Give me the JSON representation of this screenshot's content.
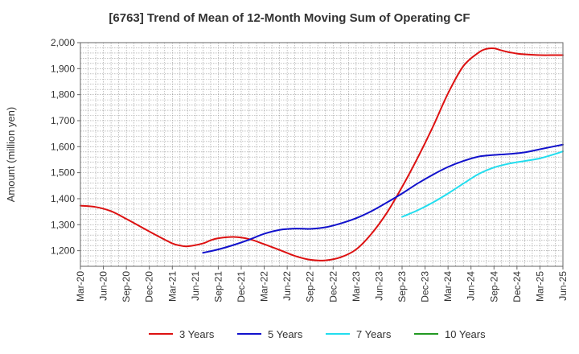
{
  "chart_data": {
    "type": "line",
    "title": "[6763]  Trend of Mean of 12-Month Moving Sum of Operating CF",
    "xlabel": "",
    "ylabel": "Amount (million yen)",
    "ylim": [
      1140,
      2000
    ],
    "yticks": [
      1200,
      1300,
      1400,
      1500,
      1600,
      1700,
      1800,
      1900,
      2000
    ],
    "ytick_labels": [
      "1,200",
      "1,300",
      "1,400",
      "1,500",
      "1,600",
      "1,700",
      "1,800",
      "1,900",
      "2,000"
    ],
    "x_range": [
      0,
      63
    ],
    "xtick_labels": [
      "Mar-20",
      "Jun-20",
      "Sep-20",
      "Dec-20",
      "Mar-21",
      "Jun-21",
      "Sep-21",
      "Dec-21",
      "Mar-22",
      "Jun-22",
      "Sep-22",
      "Dec-22",
      "Mar-23",
      "Jun-23",
      "Sep-23",
      "Dec-23",
      "Mar-24",
      "Jun-24",
      "Sep-24",
      "Dec-24",
      "Mar-25",
      "Jun-25"
    ],
    "grid": true,
    "legend_position": "bottom",
    "series": [
      {
        "name": "3 Years",
        "color": "#dd1111",
        "x": [
          0,
          2,
          4,
          6,
          8,
          10,
          12,
          13,
          14,
          16,
          17,
          18,
          20,
          22,
          24,
          26,
          28,
          30,
          32,
          34,
          36,
          38,
          40,
          42,
          44,
          46,
          48,
          50,
          52,
          53,
          54,
          55,
          56,
          57,
          58,
          60,
          62,
          63
        ],
        "values": [
          1373,
          1368,
          1352,
          1322,
          1290,
          1258,
          1228,
          1220,
          1217,
          1228,
          1240,
          1248,
          1253,
          1245,
          1225,
          1203,
          1180,
          1165,
          1163,
          1175,
          1205,
          1265,
          1345,
          1445,
          1555,
          1675,
          1805,
          1910,
          1962,
          1976,
          1978,
          1970,
          1963,
          1958,
          1955,
          1952,
          1952,
          1952
        ]
      },
      {
        "name": "5 Years",
        "color": "#1111cc",
        "x": [
          16,
          18,
          20,
          22,
          24,
          26,
          28,
          30,
          32,
          34,
          36,
          38,
          40,
          42,
          44,
          46,
          48,
          50,
          52,
          54,
          56,
          58,
          60,
          63
        ],
        "values": [
          1192,
          1205,
          1222,
          1242,
          1265,
          1280,
          1285,
          1284,
          1290,
          1305,
          1325,
          1352,
          1385,
          1420,
          1458,
          1492,
          1522,
          1545,
          1562,
          1568,
          1572,
          1578,
          1590,
          1608
        ]
      },
      {
        "name": "7 Years",
        "color": "#22ddee",
        "x": [
          42,
          44,
          46,
          48,
          50,
          52,
          54,
          56,
          58,
          60,
          62,
          63
        ],
        "values": [
          1330,
          1355,
          1385,
          1420,
          1458,
          1495,
          1520,
          1535,
          1545,
          1555,
          1572,
          1582
        ]
      },
      {
        "name": "10 Years",
        "color": "#229922",
        "x": [],
        "values": []
      }
    ]
  }
}
